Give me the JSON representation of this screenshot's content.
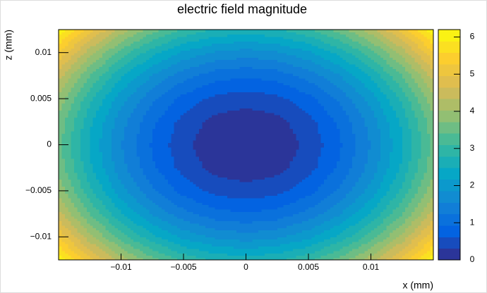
{
  "chart_data": {
    "type": "contour",
    "title": "electric field magnitude",
    "x_label": "x (mm)",
    "y_label": "z (mm)",
    "x": [
      -0.015,
      -0.0125,
      -0.01,
      -0.0075,
      -0.005,
      -0.0025,
      0,
      0.0025,
      0.005,
      0.0075,
      0.01,
      0.0125,
      0.015
    ],
    "y": [
      -0.0125,
      -0.01,
      -0.0075,
      -0.005,
      -0.0025,
      0,
      0.0025,
      0.005,
      0.0075,
      0.01,
      0.0125
    ],
    "z": [
      [
        6.17,
        5.1,
        4.22,
        3.54,
        3.05,
        2.76,
        2.66,
        2.76,
        3.05,
        3.54,
        4.22,
        5.1,
        6.17
      ],
      [
        5.21,
        4.14,
        3.26,
        2.58,
        2.09,
        1.8,
        1.7,
        1.8,
        2.09,
        2.58,
        3.26,
        4.14,
        5.21
      ],
      [
        4.47,
        3.4,
        2.52,
        1.84,
        1.35,
        1.06,
        0.96,
        1.06,
        1.35,
        1.84,
        2.52,
        3.4,
        4.47
      ],
      [
        3.94,
        2.87,
        1.99,
        1.31,
        0.82,
        0.53,
        0.43,
        0.53,
        0.82,
        1.31,
        1.99,
        2.87,
        3.94
      ],
      [
        3.62,
        2.55,
        1.67,
        0.99,
        0.5,
        0.21,
        0.11,
        0.21,
        0.5,
        0.99,
        1.67,
        2.55,
        3.62
      ],
      [
        3.51,
        2.44,
        1.56,
        0.88,
        0.39,
        0.1,
        0,
        0.1,
        0.39,
        0.88,
        1.56,
        2.44,
        3.51
      ],
      [
        3.62,
        2.55,
        1.67,
        0.99,
        0.5,
        0.21,
        0.11,
        0.21,
        0.5,
        0.99,
        1.67,
        2.55,
        3.62
      ],
      [
        3.94,
        2.87,
        1.99,
        1.31,
        0.82,
        0.53,
        0.43,
        0.53,
        0.82,
        1.31,
        1.99,
        2.87,
        3.94
      ],
      [
        4.47,
        3.4,
        2.52,
        1.84,
        1.35,
        1.06,
        0.96,
        1.06,
        1.35,
        1.84,
        2.52,
        3.4,
        4.47
      ],
      [
        5.21,
        4.14,
        3.26,
        2.58,
        2.09,
        1.8,
        1.7,
        1.8,
        2.09,
        2.58,
        3.26,
        4.14,
        5.21
      ],
      [
        6.17,
        5.1,
        4.22,
        3.54,
        3.05,
        2.76,
        2.66,
        2.76,
        3.05,
        3.54,
        4.22,
        5.1,
        6.17
      ]
    ],
    "xlim": [
      -0.015,
      0.015
    ],
    "ylim": [
      -0.0125,
      0.0125
    ],
    "zlim": [
      0,
      6.2
    ],
    "xticks": [
      {
        "value": -0.01,
        "label": "−0.01"
      },
      {
        "value": -0.005,
        "label": "−0.005"
      },
      0,
      0.005,
      0.01
    ],
    "yticks": [
      {
        "value": -0.01,
        "label": "−0.01"
      },
      {
        "value": -0.005,
        "label": "−0.005"
      },
      0,
      0.005,
      0.01
    ],
    "zticks": [
      0,
      1,
      2,
      3,
      4,
      5,
      6
    ],
    "contour_levels": 20,
    "palette": [
      "#352a87",
      "#0363e1",
      "#1485d4",
      "#06a7c6",
      "#38b99e",
      "#92bf73",
      "#d9ba56",
      "#fcce2e",
      "#f9fb0e"
    ]
  }
}
